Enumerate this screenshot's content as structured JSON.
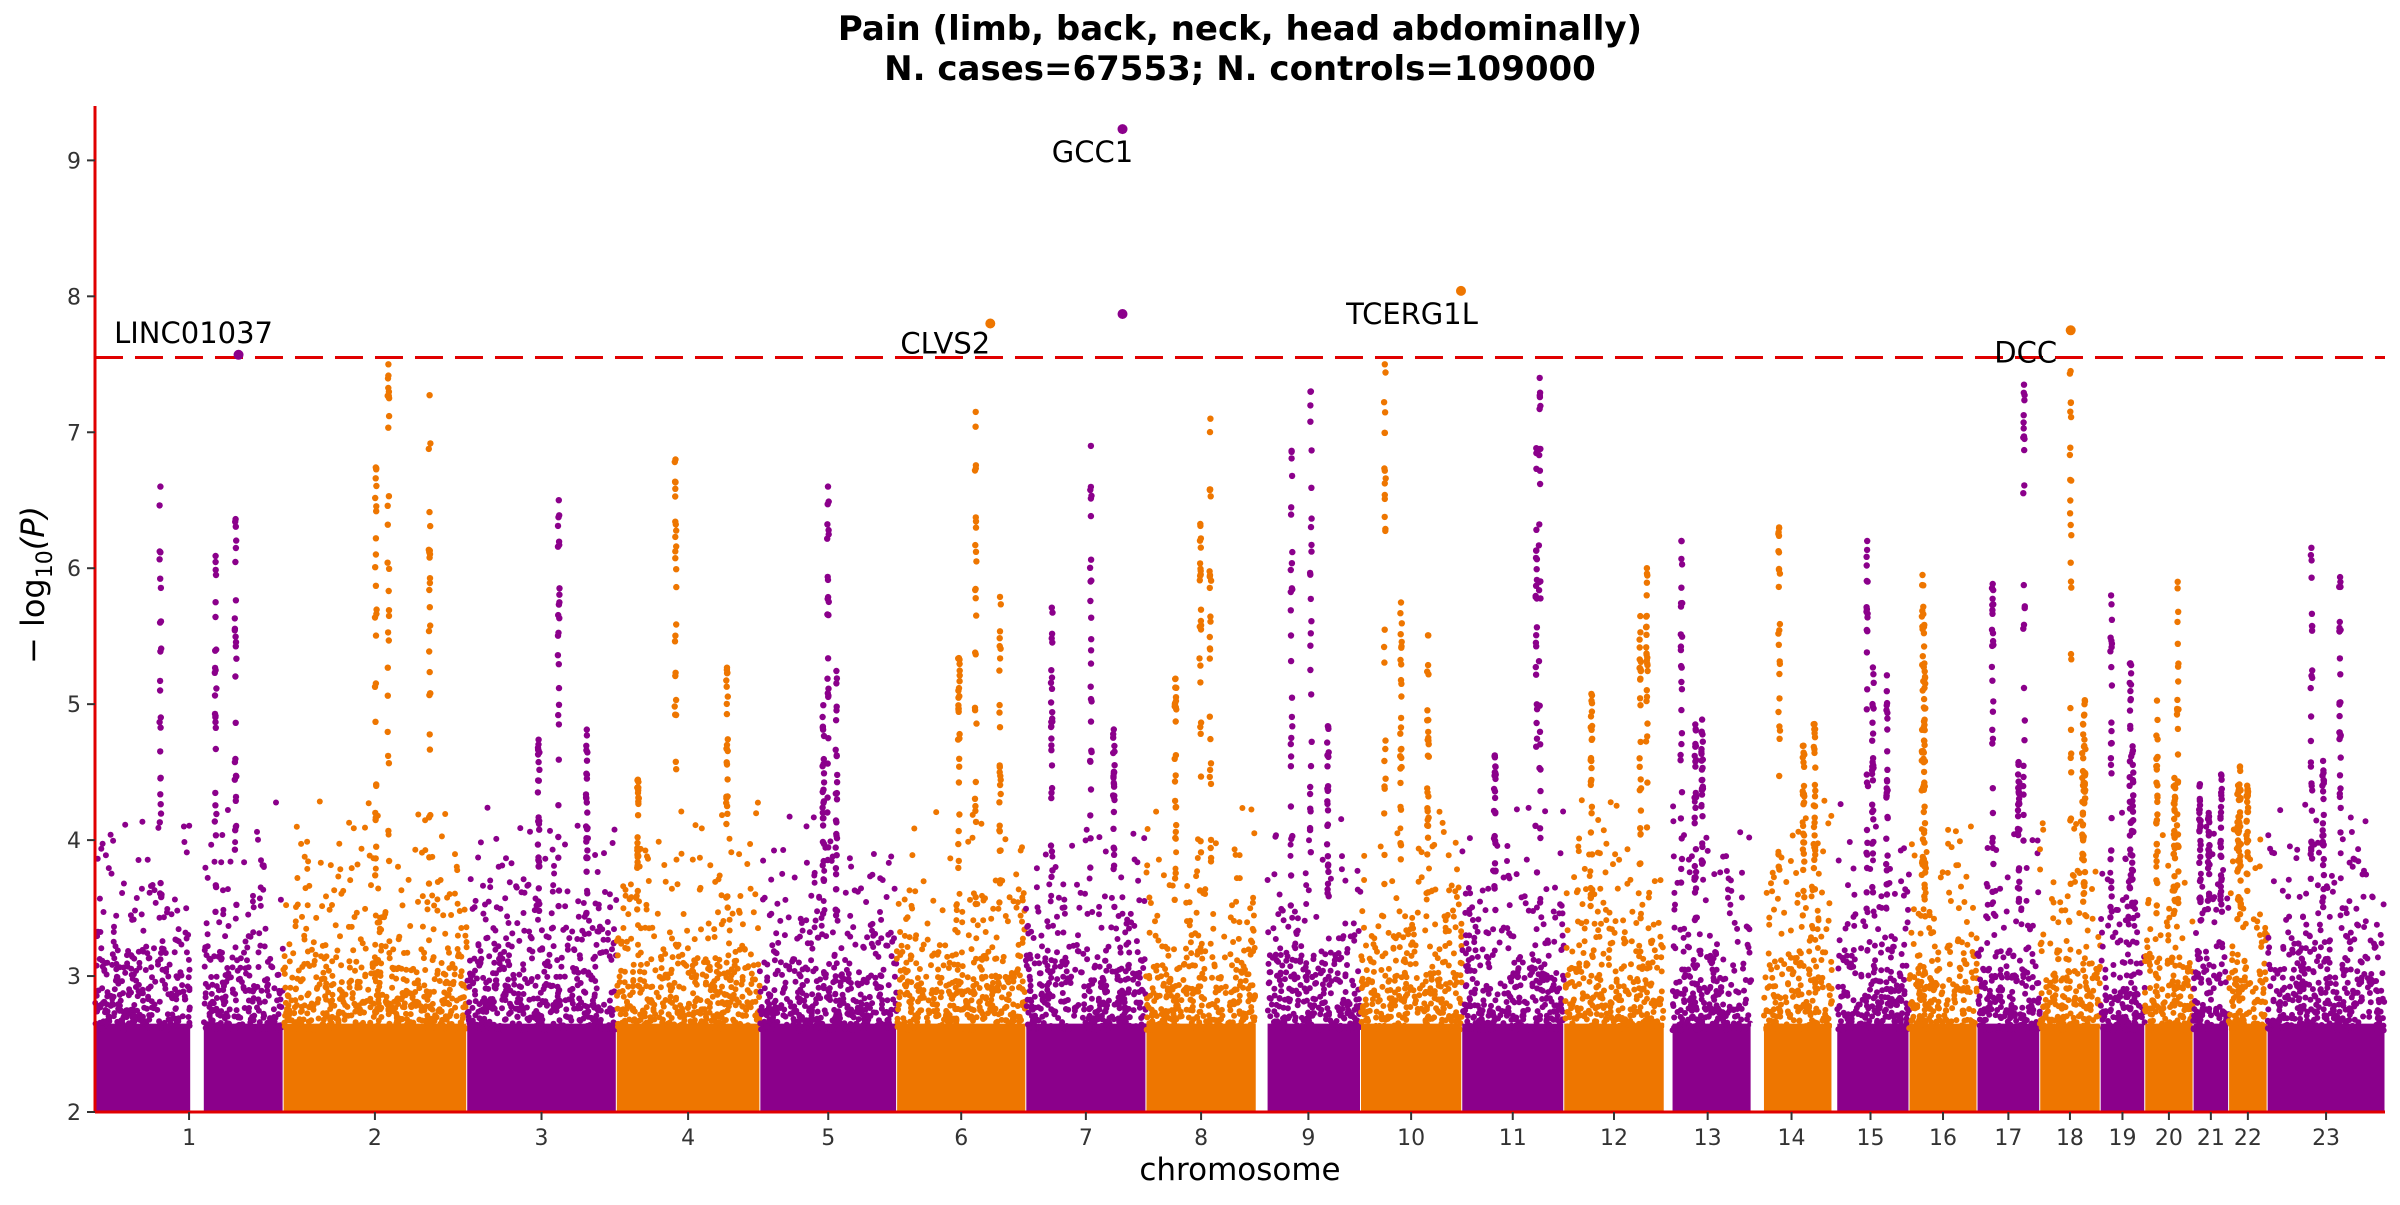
{
  "chart_data": {
    "type": "scatter",
    "title": "Pain (limb, back, neck, head abdominally)",
    "subtitle": "N. cases=67553; N. controls=109000",
    "xlabel": "chromosome",
    "ylabel_prefix": "− log",
    "ylabel_sub": "10",
    "ylabel_suffix": "(P)",
    "ylim": [
      2,
      9.4
    ],
    "yticks": [
      "2",
      "3",
      "4",
      "5",
      "6",
      "7",
      "8",
      "9"
    ],
    "grid": false,
    "legend": "none",
    "significance_threshold": 7.55,
    "colors": {
      "odd_chromosomes": "#8b008b",
      "even_chromosomes": "#ee7600",
      "axis": "#e00000",
      "threshold_line": "#e00000",
      "text": "#000000",
      "tick_text": "#333333"
    },
    "chromosomes": [
      {
        "label": "1",
        "start": 0,
        "end": 249,
        "peak": 6.6,
        "gaps": [
          [
            126,
            144
          ]
        ]
      },
      {
        "label": "2",
        "start": 249,
        "end": 492,
        "peak": 7.5
      },
      {
        "label": "3",
        "start": 492,
        "end": 690,
        "peak": 6.5
      },
      {
        "label": "4",
        "start": 690,
        "end": 880,
        "peak": 6.8
      },
      {
        "label": "5",
        "start": 880,
        "end": 1061,
        "peak": 6.6
      },
      {
        "label": "6",
        "start": 1061,
        "end": 1232,
        "peak": 7.15
      },
      {
        "label": "7",
        "start": 1232,
        "end": 1391,
        "peak": 6.9
      },
      {
        "label": "8",
        "start": 1391,
        "end": 1537,
        "peak": 7.1
      },
      {
        "label": "9",
        "start": 1537,
        "end": 1675,
        "peak": 7.3,
        "gaps": [
          [
            1537,
            1552
          ]
        ]
      },
      {
        "label": "10",
        "start": 1675,
        "end": 1809,
        "peak": 7.5
      },
      {
        "label": "11",
        "start": 1809,
        "end": 1944,
        "peak": 7.4
      },
      {
        "label": "12",
        "start": 1944,
        "end": 2077,
        "peak": 6.0
      },
      {
        "label": "13",
        "start": 2077,
        "end": 2192,
        "peak": 6.2,
        "gaps": [
          [
            2077,
            2088
          ]
        ]
      },
      {
        "label": "14",
        "start": 2192,
        "end": 2299,
        "peak": 6.3,
        "gaps": [
          [
            2192,
            2209
          ]
        ]
      },
      {
        "label": "15",
        "start": 2299,
        "end": 2401,
        "peak": 6.2,
        "gaps": [
          [
            2299,
            2306
          ]
        ]
      },
      {
        "label": "16",
        "start": 2401,
        "end": 2491,
        "peak": 5.95
      },
      {
        "label": "17",
        "start": 2491,
        "end": 2574,
        "peak": 7.35
      },
      {
        "label": "18",
        "start": 2574,
        "end": 2654,
        "peak": 7.45
      },
      {
        "label": "19",
        "start": 2654,
        "end": 2713,
        "peak": 5.8
      },
      {
        "label": "20",
        "start": 2713,
        "end": 2777,
        "peak": 5.9
      },
      {
        "label": "21",
        "start": 2777,
        "end": 2824,
        "peak": 4.2
      },
      {
        "label": "22",
        "start": 2824,
        "end": 2875,
        "peak": 4.4
      },
      {
        "label": "23",
        "start": 2875,
        "end": 3031,
        "peak": 6.15
      }
    ],
    "x_range": [
      0,
      3031
    ],
    "labeled_hits": [
      {
        "gene": "LINC01037",
        "chrom": "1",
        "pos": 190,
        "y": 7.57
      },
      {
        "gene": "CLVS2",
        "chrom": "6",
        "pos": 1185,
        "y": 7.8
      },
      {
        "gene": "GCC1",
        "chrom": "7",
        "pos": 1360,
        "y": 9.23
      },
      {
        "gene": "TCERG1L",
        "chrom": "10",
        "pos": 1808,
        "y": 8.04
      },
      {
        "gene": "DCC",
        "chrom": "18",
        "pos": 2615,
        "y": 7.75
      }
    ],
    "other_hits": [
      {
        "chrom": "7",
        "pos": 1360,
        "y": 7.87
      }
    ]
  }
}
